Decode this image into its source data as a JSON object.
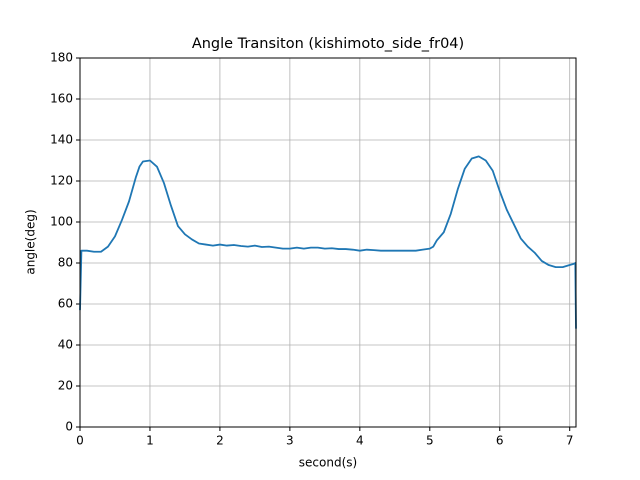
{
  "chart_data": {
    "type": "line",
    "title": "Angle Transiton (kishimoto_side_fr04)",
    "x_label": "second(s)",
    "y_label": "angle(deg)",
    "xlim": [
      0,
      7.09
    ],
    "ylim": [
      0,
      180
    ],
    "xticks": [
      0,
      1,
      2,
      3,
      4,
      5,
      6,
      7
    ],
    "yticks": [
      0,
      20,
      40,
      60,
      80,
      100,
      120,
      140,
      160,
      180
    ],
    "grid": true,
    "series": [
      {
        "name": "angle",
        "color": "#1f77b4",
        "x": [
          0,
          0.02,
          0.1,
          0.2,
          0.3,
          0.4,
          0.5,
          0.6,
          0.7,
          0.8,
          0.85,
          0.9,
          1.0,
          1.1,
          1.2,
          1.3,
          1.4,
          1.5,
          1.6,
          1.7,
          1.8,
          1.9,
          2.0,
          2.1,
          2.2,
          2.3,
          2.4,
          2.5,
          2.6,
          2.7,
          2.8,
          2.9,
          3.0,
          3.1,
          3.2,
          3.3,
          3.4,
          3.5,
          3.6,
          3.7,
          3.8,
          3.9,
          4.0,
          4.1,
          4.2,
          4.3,
          4.4,
          4.5,
          4.6,
          4.7,
          4.8,
          4.9,
          5.0,
          5.05,
          5.1,
          5.2,
          5.3,
          5.4,
          5.5,
          5.6,
          5.7,
          5.8,
          5.9,
          6.0,
          6.1,
          6.2,
          6.3,
          6.4,
          6.5,
          6.6,
          6.7,
          6.8,
          6.9,
          7.0,
          7.05,
          7.08,
          7.09
        ],
        "values": [
          57,
          86,
          86,
          85.5,
          85.5,
          88,
          93,
          101,
          110,
          122,
          127,
          129.5,
          130,
          127,
          119,
          108,
          98,
          94,
          91.5,
          89.5,
          89,
          88.5,
          89,
          88.5,
          88.8,
          88.3,
          88,
          88.5,
          87.8,
          88,
          87.5,
          87,
          87,
          87.5,
          87,
          87.5,
          87.5,
          87,
          87.2,
          86.8,
          86.8,
          86.5,
          86,
          86.5,
          86.3,
          86,
          86,
          86,
          86,
          86,
          86,
          86.5,
          87,
          88,
          91,
          95,
          104,
          116,
          126,
          131,
          132,
          130,
          125,
          115,
          106,
          99,
          92,
          88,
          85,
          81,
          79,
          78,
          78,
          79,
          79.5,
          80,
          48
        ]
      }
    ]
  }
}
